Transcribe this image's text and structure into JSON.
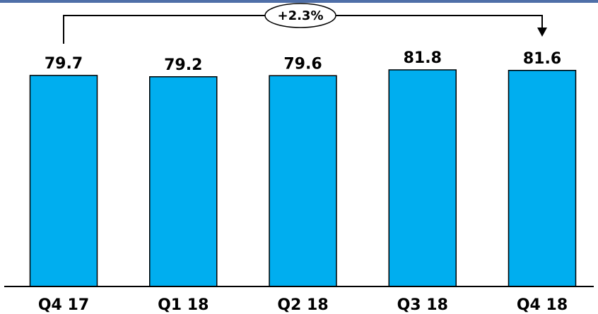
{
  "chart_data": {
    "type": "bar",
    "categories": [
      "Q4 17",
      "Q1 18",
      "Q2 18",
      "Q3 18",
      "Q4 18"
    ],
    "values": [
      79.7,
      79.2,
      79.6,
      81.8,
      81.6
    ],
    "value_labels": [
      "79.7",
      "79.2",
      "79.6",
      "81.8",
      "81.6"
    ],
    "title": "",
    "xlabel": "",
    "ylabel": "",
    "ylim": [
      0,
      81.8
    ],
    "grid": false,
    "legend": "none",
    "annotation": {
      "text": "+2.3%",
      "from_category": "Q4 17",
      "to_category": "Q4 18"
    },
    "colors": {
      "bar_fill": "#00AEEF",
      "bar_stroke": "#000000",
      "axis": "#000000",
      "top_rule": "#4F6FA8"
    }
  }
}
